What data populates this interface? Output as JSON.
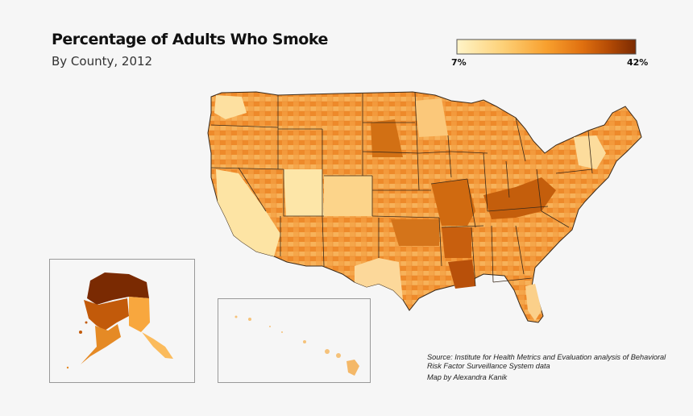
{
  "title": "Percentage of Adults Who Smoke",
  "subtitle": "By County, 2012",
  "legend": {
    "min_label": "7%",
    "max_label": "42%",
    "min_value": 7,
    "max_value": 42,
    "colors": [
      "#fff4c8",
      "#fdd27a",
      "#f8a02e",
      "#e07010",
      "#b44b05",
      "#7a2a02"
    ]
  },
  "colors": {
    "background": "#f6f6f6",
    "state_border": "#3a2a1a",
    "inset_border": "#999999"
  },
  "source_text": "Source: Institute for Health Metrics and Evaluation analysis of Behavioral Risk Factor Surveillance System data",
  "credit_text": "Map by Alexandra Kanik"
}
